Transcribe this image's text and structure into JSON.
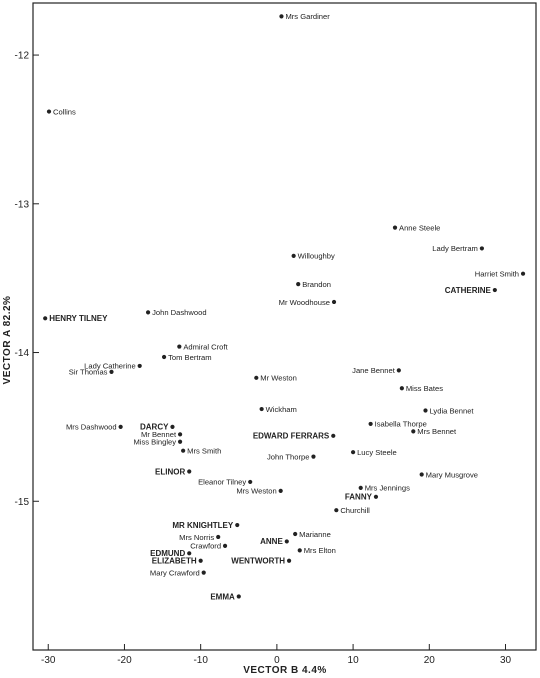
{
  "chart_data": {
    "type": "scatter",
    "title": "",
    "xlabel": "VECTOR B 4.4%",
    "ylabel": "VECTOR A 82.2%",
    "xlim": [
      -32,
      34
    ],
    "ylim": [
      -16.0,
      -11.65
    ],
    "x_ticks": [
      -30,
      -20,
      -10,
      0,
      10,
      20,
      30
    ],
    "y_ticks": [
      -12,
      -13,
      -14,
      -15
    ],
    "x_tick_labels": [
      "-30",
      "-20",
      "-10",
      "0",
      "10",
      "20",
      "30"
    ],
    "y_tick_labels": [
      "-12",
      "-13",
      "-14",
      "-15"
    ],
    "grid": false,
    "points": [
      {
        "name": "Mrs Gardiner",
        "x": 0.6,
        "y": -11.74,
        "bold": false
      },
      {
        "name": "Collins",
        "x": -29.9,
        "y": -12.38,
        "bold": false
      },
      {
        "name": "Anne Steele",
        "x": 15.5,
        "y": -13.16,
        "bold": false
      },
      {
        "name": "Lady Bertram",
        "x": 26.9,
        "y": -13.3,
        "bold": false
      },
      {
        "name": "Harriet Smith",
        "x": 32.3,
        "y": -13.47,
        "bold": false
      },
      {
        "name": "CATHERINE",
        "x": 28.6,
        "y": -13.58,
        "bold": true
      },
      {
        "name": "Willoughby",
        "x": 2.2,
        "y": -13.35,
        "bold": false
      },
      {
        "name": "Brandon",
        "x": 2.8,
        "y": -13.54,
        "bold": false
      },
      {
        "name": "Mr Woodhouse",
        "x": 7.5,
        "y": -13.66,
        "bold": false
      },
      {
        "name": "HENRY TILNEY",
        "x": -30.4,
        "y": -13.77,
        "bold": true
      },
      {
        "name": "John Dashwood",
        "x": -16.9,
        "y": -13.73,
        "bold": false
      },
      {
        "name": "Admiral Croft",
        "x": -12.8,
        "y": -13.96,
        "bold": false
      },
      {
        "name": "Tom Bertram",
        "x": -14.8,
        "y": -14.03,
        "bold": false
      },
      {
        "name": "Lady Catherine",
        "x": -18.0,
        "y": -14.09,
        "bold": false
      },
      {
        "name": "Sir Thomas",
        "x": -21.7,
        "y": -14.13,
        "bold": false
      },
      {
        "name": "Mr Weston",
        "x": -2.7,
        "y": -14.17,
        "bold": false
      },
      {
        "name": "Jane Bennet",
        "x": 16.0,
        "y": -14.12,
        "bold": false
      },
      {
        "name": "Miss Bates",
        "x": 16.4,
        "y": -14.24,
        "bold": false
      },
      {
        "name": "Wickham",
        "x": -2.0,
        "y": -14.38,
        "bold": false
      },
      {
        "name": "Lydia Bennet",
        "x": 19.5,
        "y": -14.39,
        "bold": false
      },
      {
        "name": "Mrs Dashwood",
        "x": -20.5,
        "y": -14.5,
        "bold": false
      },
      {
        "name": "DARCY",
        "x": -13.7,
        "y": -14.5,
        "bold": true
      },
      {
        "name": "Mr Bennet",
        "x": -12.7,
        "y": -14.55,
        "bold": false
      },
      {
        "name": "Miss Bingley",
        "x": -12.7,
        "y": -14.6,
        "bold": false
      },
      {
        "name": "EDWARD FERRARS",
        "x": 7.4,
        "y": -14.56,
        "bold": true
      },
      {
        "name": "Isabella Thorpe",
        "x": 12.3,
        "y": -14.48,
        "bold": false
      },
      {
        "name": "Mrs Bennet",
        "x": 17.9,
        "y": -14.53,
        "bold": false
      },
      {
        "name": "Mrs Smith",
        "x": -12.3,
        "y": -14.66,
        "bold": false
      },
      {
        "name": "John Thorpe",
        "x": 4.8,
        "y": -14.7,
        "bold": false
      },
      {
        "name": "Lucy Steele",
        "x": 10.0,
        "y": -14.67,
        "bold": false
      },
      {
        "name": "ELINOR",
        "x": -11.5,
        "y": -14.8,
        "bold": true
      },
      {
        "name": "Mary Musgrove",
        "x": 19.0,
        "y": -14.82,
        "bold": false
      },
      {
        "name": "Eleanor Tilney",
        "x": -3.5,
        "y": -14.87,
        "bold": false
      },
      {
        "name": "Mrs Jennings",
        "x": 11.0,
        "y": -14.91,
        "bold": false
      },
      {
        "name": "Mrs Weston",
        "x": 0.5,
        "y": -14.93,
        "bold": false
      },
      {
        "name": "FANNY",
        "x": 13.0,
        "y": -14.97,
        "bold": true
      },
      {
        "name": "Churchill",
        "x": 7.8,
        "y": -15.06,
        "bold": false
      },
      {
        "name": "MR KNIGHTLEY",
        "x": -5.2,
        "y": -15.16,
        "bold": true
      },
      {
        "name": "Marianne",
        "x": 2.4,
        "y": -15.22,
        "bold": false
      },
      {
        "name": "Mrs Norris",
        "x": -7.7,
        "y": -15.24,
        "bold": false
      },
      {
        "name": "ANNE",
        "x": 1.3,
        "y": -15.27,
        "bold": true
      },
      {
        "name": "Crawford",
        "x": -6.8,
        "y": -15.3,
        "bold": false
      },
      {
        "name": "Mrs Elton",
        "x": 3.0,
        "y": -15.33,
        "bold": false
      },
      {
        "name": "EDMUND",
        "x": -11.5,
        "y": -15.35,
        "bold": true
      },
      {
        "name": "ELIZABETH",
        "x": -10.0,
        "y": -15.4,
        "bold": true
      },
      {
        "name": "WENTWORTH",
        "x": 1.6,
        "y": -15.4,
        "bold": true
      },
      {
        "name": "Mary Crawford",
        "x": -9.6,
        "y": -15.48,
        "bold": false
      },
      {
        "name": "EMMA",
        "x": -5.0,
        "y": -15.64,
        "bold": true
      }
    ]
  }
}
